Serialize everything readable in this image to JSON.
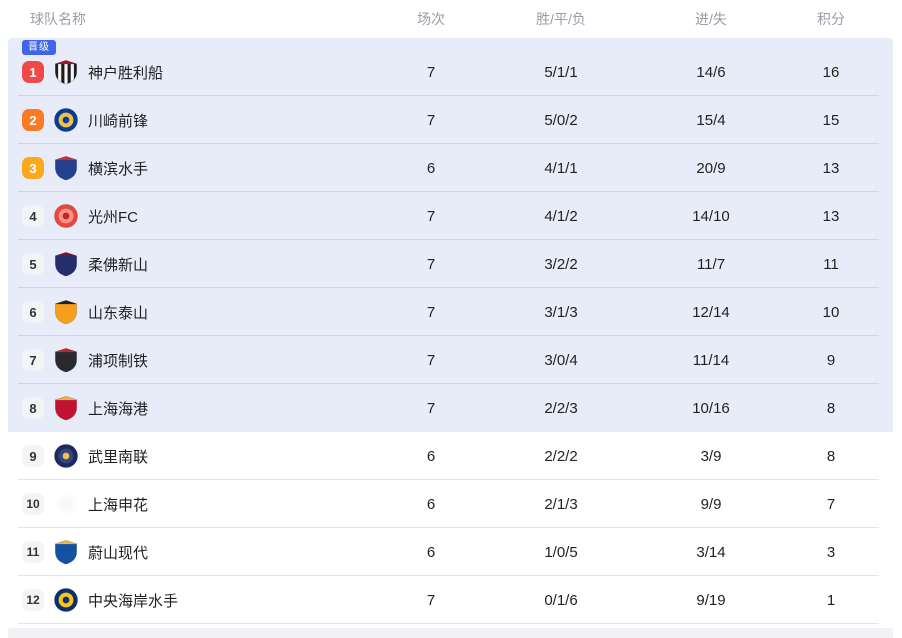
{
  "colors": {
    "promotion_badge_bg": "#4065e8",
    "highlight_row_bg": "#e7ecf8",
    "rank_red": "#f04949",
    "rank_orange": "#fa7b23",
    "rank_amber": "#faa91d",
    "rank_plain_bg": "#f3f4f6",
    "rank_plain_text": "#333333",
    "rank_colored_text": "#ffffff"
  },
  "table": {
    "promotion_label": "晋级",
    "columns": [
      {
        "label": "球队名称"
      },
      {
        "label": "场次"
      },
      {
        "label": "胜/平/负"
      },
      {
        "label": "进/失"
      },
      {
        "label": "积分"
      }
    ],
    "groups": [
      {
        "id": "qualified",
        "highlight": true,
        "badge": "晋级",
        "rows": [
          {
            "rank": "1",
            "rank_style": "red",
            "team": "神户胜利船",
            "played": "7",
            "wdl": "5/1/1",
            "goals": "14/6",
            "points": "16",
            "logo": {
              "type": "shield",
              "stripes": true,
              "primary": "#1d1d1f",
              "secondary": "#f5f5f5",
              "accent": "#a50f32"
            }
          },
          {
            "rank": "2",
            "rank_style": "orange",
            "team": "川崎前锋",
            "played": "7",
            "wdl": "5/0/2",
            "goals": "15/4",
            "points": "15",
            "logo": {
              "type": "circle",
              "primary": "#0a3d91",
              "secondary": "#f0c24a",
              "accent": "#0a3d91"
            }
          },
          {
            "rank": "3",
            "rank_style": "amber",
            "team": "横滨水手",
            "played": "6",
            "wdl": "4/1/1",
            "goals": "20/9",
            "points": "13",
            "logo": {
              "type": "shield",
              "primary": "#24418f",
              "secondary": "#ffffff",
              "accent": "#cf2e2e"
            }
          },
          {
            "rank": "4",
            "rank_style": "plain",
            "team": "光州FC",
            "played": "7",
            "wdl": "4/1/2",
            "goals": "14/10",
            "points": "13",
            "logo": {
              "type": "circle",
              "primary": "#e8473e",
              "secondary": "#f3938c",
              "accent": "#c4271f"
            }
          },
          {
            "rank": "5",
            "rank_style": "plain",
            "team": "柔佛新山",
            "played": "7",
            "wdl": "3/2/2",
            "goals": "11/7",
            "points": "11",
            "logo": {
              "type": "shield",
              "primary": "#232e6b",
              "secondary": "#ffffff",
              "accent": "#7c1333"
            }
          },
          {
            "rank": "6",
            "rank_style": "plain",
            "team": "山东泰山",
            "played": "7",
            "wdl": "3/1/3",
            "goals": "12/14",
            "points": "10",
            "logo": {
              "type": "shield",
              "primary": "#f59f1d",
              "secondary": "#ffffff",
              "accent": "#222222"
            }
          },
          {
            "rank": "7",
            "rank_style": "plain",
            "team": "浦项制铁",
            "played": "7",
            "wdl": "3/0/4",
            "goals": "11/14",
            "points": "9",
            "logo": {
              "type": "shield",
              "primary": "#2a2a2e",
              "secondary": "#ffffff",
              "accent": "#c2262c"
            }
          },
          {
            "rank": "8",
            "rank_style": "plain",
            "team": "上海海港",
            "played": "7",
            "wdl": "2/2/3",
            "goals": "10/16",
            "points": "8",
            "logo": {
              "type": "shield",
              "primary": "#c11432",
              "secondary": "#ffffff",
              "accent": "#e9b63c"
            }
          }
        ]
      },
      {
        "id": "others",
        "highlight": false,
        "rows": [
          {
            "rank": "9",
            "rank_style": "plain",
            "team": "武里南联",
            "played": "6",
            "wdl": "2/2/2",
            "goals": "3/9",
            "points": "8",
            "logo": {
              "type": "circle",
              "primary": "#1c2a5e",
              "secondary": "#35457f",
              "accent": "#f2c14e"
            }
          },
          {
            "rank": "10",
            "rank_style": "plain",
            "team": "上海申花",
            "played": "6",
            "wdl": "2/1/3",
            "goals": "9/9",
            "points": "7",
            "logo": {
              "type": "circle",
              "outline": false,
              "primary": "#fdfdfe",
              "secondary": "#f7f8fa"
            }
          },
          {
            "rank": "11",
            "rank_style": "plain",
            "team": "蔚山现代",
            "played": "6",
            "wdl": "1/0/5",
            "goals": "3/14",
            "points": "3",
            "logo": {
              "type": "shield",
              "primary": "#1252a2",
              "secondary": "#ffffff",
              "accent": "#ecb83d"
            }
          },
          {
            "rank": "12",
            "rank_style": "plain",
            "team": "中央海岸水手",
            "played": "7",
            "wdl": "0/1/6",
            "goals": "9/19",
            "points": "1",
            "logo": {
              "type": "circle",
              "primary": "#0e2f6e",
              "secondary": "#f5c518",
              "accent": "#0e2f6e"
            }
          }
        ]
      }
    ]
  }
}
